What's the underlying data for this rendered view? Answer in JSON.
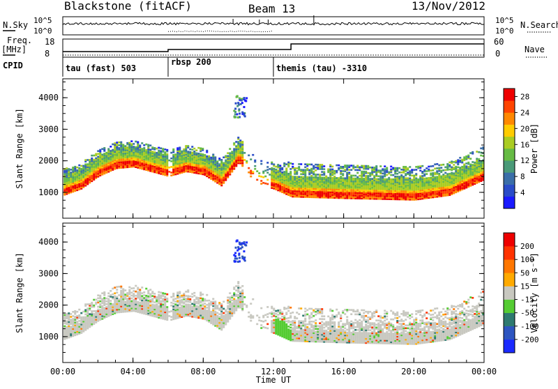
{
  "header": {
    "station": "Blackstone (fitACF)",
    "beam": "Beam 13",
    "date": "13/Nov/2012"
  },
  "side_labels": {
    "nsky": "N.Sky",
    "freq": "Freq.",
    "freq_unit": "[MHz]",
    "cpid": "CPID",
    "nsearch": "N.Search",
    "nave": "Nave"
  },
  "summary_ticks": {
    "sky_top": "10^5",
    "sky_bot": "10^0",
    "search_top": "10^5",
    "search_bot": "10^0",
    "freq_top": "18",
    "freq_bot": "8",
    "nave_top": "60",
    "nave_bot": "0"
  },
  "cpid_segments": [
    {
      "label": "tau (fast) 503",
      "start_hour": 0,
      "end_hour": 6
    },
    {
      "label": "rbsp 200",
      "start_hour": 6,
      "end_hour": 12
    },
    {
      "label": "themis (tau) -3310",
      "start_hour": 12,
      "end_hour": 24
    }
  ],
  "chart_data": [
    {
      "type": "heatmap",
      "name": "power",
      "ylabel": "Slant Range [km]",
      "xlabel": "Time UT",
      "x_ticks": [
        "00:00",
        "04:00",
        "08:00",
        "12:00",
        "16:00",
        "20:00",
        "00:00"
      ],
      "xlim_hours": [
        0,
        24
      ],
      "y_ticks": [
        1000,
        2000,
        3000,
        4000
      ],
      "ylim": [
        180,
        4600
      ],
      "colorbar": {
        "label": "Power [dB]",
        "ticks": [
          "4",
          "8",
          "12",
          "16",
          "20",
          "24",
          "28"
        ],
        "range": [
          0,
          30
        ],
        "colors": [
          "#1a1aff",
          "#2a4cc8",
          "#3a6ea8",
          "#4a9a78",
          "#66bb44",
          "#aacc22",
          "#ffcc00",
          "#ff8800",
          "#ff4400",
          "#ee0000"
        ]
      },
      "main_band_km": [
        {
          "hour": 0.0,
          "km": 1050
        },
        {
          "hour": 1.0,
          "km": 1250
        },
        {
          "hour": 2.0,
          "km": 1650
        },
        {
          "hour": 3.0,
          "km": 1900
        },
        {
          "hour": 4.0,
          "km": 1950
        },
        {
          "hour": 5.0,
          "km": 1800
        },
        {
          "hour": 6.0,
          "km": 1650
        },
        {
          "hour": 7.0,
          "km": 1800
        },
        {
          "hour": 8.0,
          "km": 1700
        },
        {
          "hour": 9.0,
          "km": 1350
        },
        {
          "hour": 10.0,
          "km": 2100
        },
        {
          "hour": 11.0,
          "km": 1400
        },
        {
          "hour": 12.0,
          "km": 1250
        },
        {
          "hour": 13.0,
          "km": 1000
        },
        {
          "hour": 16.0,
          "km": 950
        },
        {
          "hour": 20.0,
          "km": 900
        },
        {
          "hour": 22.0,
          "km": 1050
        },
        {
          "hour": 24.0,
          "km": 1550
        }
      ]
    },
    {
      "type": "heatmap",
      "name": "velocity",
      "ylabel": "Slant Range [km]",
      "xlabel": "Time UT",
      "x_ticks": [
        "00:00",
        "04:00",
        "08:00",
        "12:00",
        "16:00",
        "20:00",
        "00:00"
      ],
      "xlim_hours": [
        0,
        24
      ],
      "y_ticks": [
        1000,
        2000,
        3000,
        4000
      ],
      "ylim": [
        180,
        4600
      ],
      "colorbar": {
        "label": "Velocity [m s⁻¹]",
        "ticks": [
          "200",
          "100",
          "50",
          "15",
          "-15",
          "-50",
          "-100",
          "-200"
        ],
        "colors": [
          "#1a2aff",
          "#2d55c0",
          "#2e7a70",
          "#55cc33",
          "#c8c8c0",
          "#ffaa00",
          "#ff7700",
          "#ff3300",
          "#ee0000"
        ]
      }
    }
  ]
}
